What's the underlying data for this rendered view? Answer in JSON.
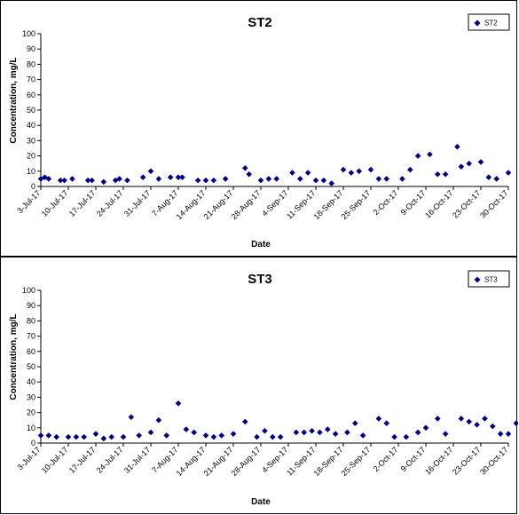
{
  "chart_data": [
    {
      "type": "scatter",
      "title": "ST2",
      "xlabel": "Date",
      "ylabel": "Concentration, mg/L",
      "ylim": [
        0,
        100
      ],
      "yticks": [
        0,
        10,
        20,
        30,
        40,
        50,
        60,
        70,
        80,
        90,
        100
      ],
      "xlim": [
        "2017-07-03",
        "2017-10-30"
      ],
      "xtick_labels": [
        "3-Jul-17",
        "10-Jul-17",
        "17-Jul-17",
        "24-Jul-17",
        "31-Jul-17",
        "7-Aug-17",
        "14-Aug-17",
        "21-Aug-17",
        "28-Aug-17",
        "4-Sep-17",
        "11-Sep-17",
        "18-Sep-17",
        "25-Sep-17",
        "2-Oct-17",
        "9-Oct-17",
        "16-Oct-17",
        "23-Oct-17",
        "30-Oct-17"
      ],
      "legend_position": "top-right",
      "marker_color": "#000080",
      "series": [
        {
          "name": "ST2",
          "points": [
            {
              "x": "2017-07-03",
              "y": 5
            },
            {
              "x": "2017-07-04",
              "y": 6
            },
            {
              "x": "2017-07-05",
              "y": 5
            },
            {
              "x": "2017-07-08",
              "y": 4
            },
            {
              "x": "2017-07-09",
              "y": 4
            },
            {
              "x": "2017-07-11",
              "y": 5
            },
            {
              "x": "2017-07-15",
              "y": 4
            },
            {
              "x": "2017-07-16",
              "y": 4
            },
            {
              "x": "2017-07-19",
              "y": 3
            },
            {
              "x": "2017-07-22",
              "y": 4
            },
            {
              "x": "2017-07-23",
              "y": 5
            },
            {
              "x": "2017-07-25",
              "y": 4
            },
            {
              "x": "2017-07-29",
              "y": 6
            },
            {
              "x": "2017-07-31",
              "y": 10
            },
            {
              "x": "2017-08-02",
              "y": 5
            },
            {
              "x": "2017-08-05",
              "y": 6
            },
            {
              "x": "2017-08-07",
              "y": 6
            },
            {
              "x": "2017-08-08",
              "y": 6
            },
            {
              "x": "2017-08-12",
              "y": 4
            },
            {
              "x": "2017-08-14",
              "y": 4
            },
            {
              "x": "2017-08-16",
              "y": 4
            },
            {
              "x": "2017-08-19",
              "y": 5
            },
            {
              "x": "2017-08-24",
              "y": 12
            },
            {
              "x": "2017-08-25",
              "y": 8
            },
            {
              "x": "2017-08-28",
              "y": 4
            },
            {
              "x": "2017-08-30",
              "y": 5
            },
            {
              "x": "2017-09-01",
              "y": 5
            },
            {
              "x": "2017-09-05",
              "y": 9
            },
            {
              "x": "2017-09-07",
              "y": 5
            },
            {
              "x": "2017-09-09",
              "y": 9
            },
            {
              "x": "2017-09-11",
              "y": 4
            },
            {
              "x": "2017-09-13",
              "y": 4
            },
            {
              "x": "2017-09-15",
              "y": 2
            },
            {
              "x": "2017-09-18",
              "y": 11
            },
            {
              "x": "2017-09-20",
              "y": 9
            },
            {
              "x": "2017-09-22",
              "y": 10
            },
            {
              "x": "2017-09-25",
              "y": 11
            },
            {
              "x": "2017-09-27",
              "y": 5
            },
            {
              "x": "2017-09-29",
              "y": 5
            },
            {
              "x": "2017-10-03",
              "y": 5
            },
            {
              "x": "2017-10-05",
              "y": 11
            },
            {
              "x": "2017-10-07",
              "y": 20
            },
            {
              "x": "2017-10-10",
              "y": 21
            },
            {
              "x": "2017-10-12",
              "y": 8
            },
            {
              "x": "2017-10-14",
              "y": 8
            },
            {
              "x": "2017-10-17",
              "y": 26
            },
            {
              "x": "2017-10-18",
              "y": 13
            },
            {
              "x": "2017-10-20",
              "y": 15
            },
            {
              "x": "2017-10-23",
              "y": 16
            },
            {
              "x": "2017-10-25",
              "y": 6
            },
            {
              "x": "2017-10-27",
              "y": 5
            },
            {
              "x": "2017-10-30",
              "y": 9
            }
          ]
        }
      ]
    },
    {
      "type": "scatter",
      "title": "ST3",
      "xlabel": "Date",
      "ylabel": "Concentration, mg/L",
      "ylim": [
        0,
        100
      ],
      "yticks": [
        0,
        10,
        20,
        30,
        40,
        50,
        60,
        70,
        80,
        90,
        100
      ],
      "xlim": [
        "2017-07-03",
        "2017-10-30"
      ],
      "xtick_labels": [
        "3-Jul-17",
        "10-Jul-17",
        "17-Jul-17",
        "24-Jul-17",
        "31-Jul-17",
        "7-Aug-17",
        "14-Aug-17",
        "21-Aug-17",
        "28-Aug-17",
        "4-Sep-17",
        "11-Sep-17",
        "18-Sep-17",
        "25-Sep-17",
        "2-Oct-17",
        "9-Oct-17",
        "16-Oct-17",
        "23-Oct-17",
        "30-Oct-17"
      ],
      "legend_position": "top-right",
      "marker_color": "#000080",
      "series": [
        {
          "name": "ST3",
          "points": [
            {
              "x": "2017-07-03",
              "y": 5
            },
            {
              "x": "2017-07-05",
              "y": 5
            },
            {
              "x": "2017-07-07",
              "y": 4
            },
            {
              "x": "2017-07-10",
              "y": 4
            },
            {
              "x": "2017-07-12",
              "y": 4
            },
            {
              "x": "2017-07-14",
              "y": 4
            },
            {
              "x": "2017-07-17",
              "y": 6
            },
            {
              "x": "2017-07-19",
              "y": 3
            },
            {
              "x": "2017-07-21",
              "y": 4
            },
            {
              "x": "2017-07-24",
              "y": 4
            },
            {
              "x": "2017-07-26",
              "y": 17
            },
            {
              "x": "2017-07-28",
              "y": 5
            },
            {
              "x": "2017-07-31",
              "y": 7
            },
            {
              "x": "2017-08-02",
              "y": 15
            },
            {
              "x": "2017-08-04",
              "y": 5
            },
            {
              "x": "2017-08-07",
              "y": 26
            },
            {
              "x": "2017-08-09",
              "y": 9
            },
            {
              "x": "2017-08-11",
              "y": 7
            },
            {
              "x": "2017-08-14",
              "y": 5
            },
            {
              "x": "2017-08-16",
              "y": 4
            },
            {
              "x": "2017-08-18",
              "y": 5
            },
            {
              "x": "2017-08-21",
              "y": 6
            },
            {
              "x": "2017-08-24",
              "y": 14
            },
            {
              "x": "2017-08-27",
              "y": 4
            },
            {
              "x": "2017-08-29",
              "y": 8
            },
            {
              "x": "2017-08-31",
              "y": 4
            },
            {
              "x": "2017-09-02",
              "y": 4
            },
            {
              "x": "2017-09-06",
              "y": 7
            },
            {
              "x": "2017-09-08",
              "y": 7
            },
            {
              "x": "2017-09-10",
              "y": 8
            },
            {
              "x": "2017-09-12",
              "y": 7
            },
            {
              "x": "2017-09-14",
              "y": 9
            },
            {
              "x": "2017-09-16",
              "y": 6
            },
            {
              "x": "2017-09-19",
              "y": 7
            },
            {
              "x": "2017-09-21",
              "y": 13
            },
            {
              "x": "2017-09-23",
              "y": 5
            },
            {
              "x": "2017-09-27",
              "y": 16
            },
            {
              "x": "2017-09-29",
              "y": 13
            },
            {
              "x": "2017-10-01",
              "y": 4
            },
            {
              "x": "2017-10-04",
              "y": 4
            },
            {
              "x": "2017-10-07",
              "y": 7
            },
            {
              "x": "2017-10-09",
              "y": 10
            },
            {
              "x": "2017-10-12",
              "y": 16
            },
            {
              "x": "2017-10-14",
              "y": 6
            },
            {
              "x": "2017-10-18",
              "y": 16
            },
            {
              "x": "2017-10-20",
              "y": 14
            },
            {
              "x": "2017-10-22",
              "y": 12
            },
            {
              "x": "2017-10-24",
              "y": 16
            },
            {
              "x": "2017-10-26",
              "y": 11
            },
            {
              "x": "2017-10-28",
              "y": 6
            },
            {
              "x": "2017-10-30",
              "y": 6
            },
            {
              "x": "2017-11-01",
              "y": 13
            }
          ]
        }
      ]
    }
  ]
}
